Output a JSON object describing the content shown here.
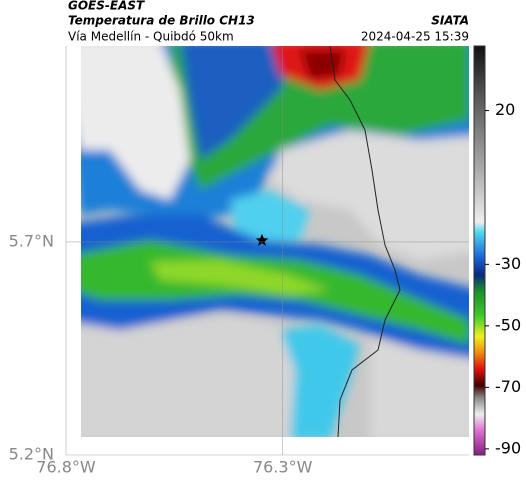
{
  "chart_data": {
    "type": "map",
    "title": "GOES-EAST",
    "subtitle": "Temperatura de Brillo CH13",
    "region": "Vía Medellín - Quibdó 50km",
    "source": "SIATA",
    "timestamp": "2024-04-25 15:39",
    "xlim": [
      -76.8,
      -75.87
    ],
    "ylim": [
      5.2,
      6.16
    ],
    "xticks": [
      {
        "value": -76.8,
        "label": "76.8°W"
      },
      {
        "value": -76.3,
        "label": "76.3°W"
      }
    ],
    "yticks": [
      {
        "value": 5.7,
        "label": "5.7°N"
      },
      {
        "value": 5.2,
        "label": "5.2°N"
      }
    ],
    "grid": true,
    "colorbar": {
      "lim": [
        -92,
        41
      ],
      "ticks": [
        20,
        -30,
        -50,
        -70,
        -90
      ]
    }
  }
}
